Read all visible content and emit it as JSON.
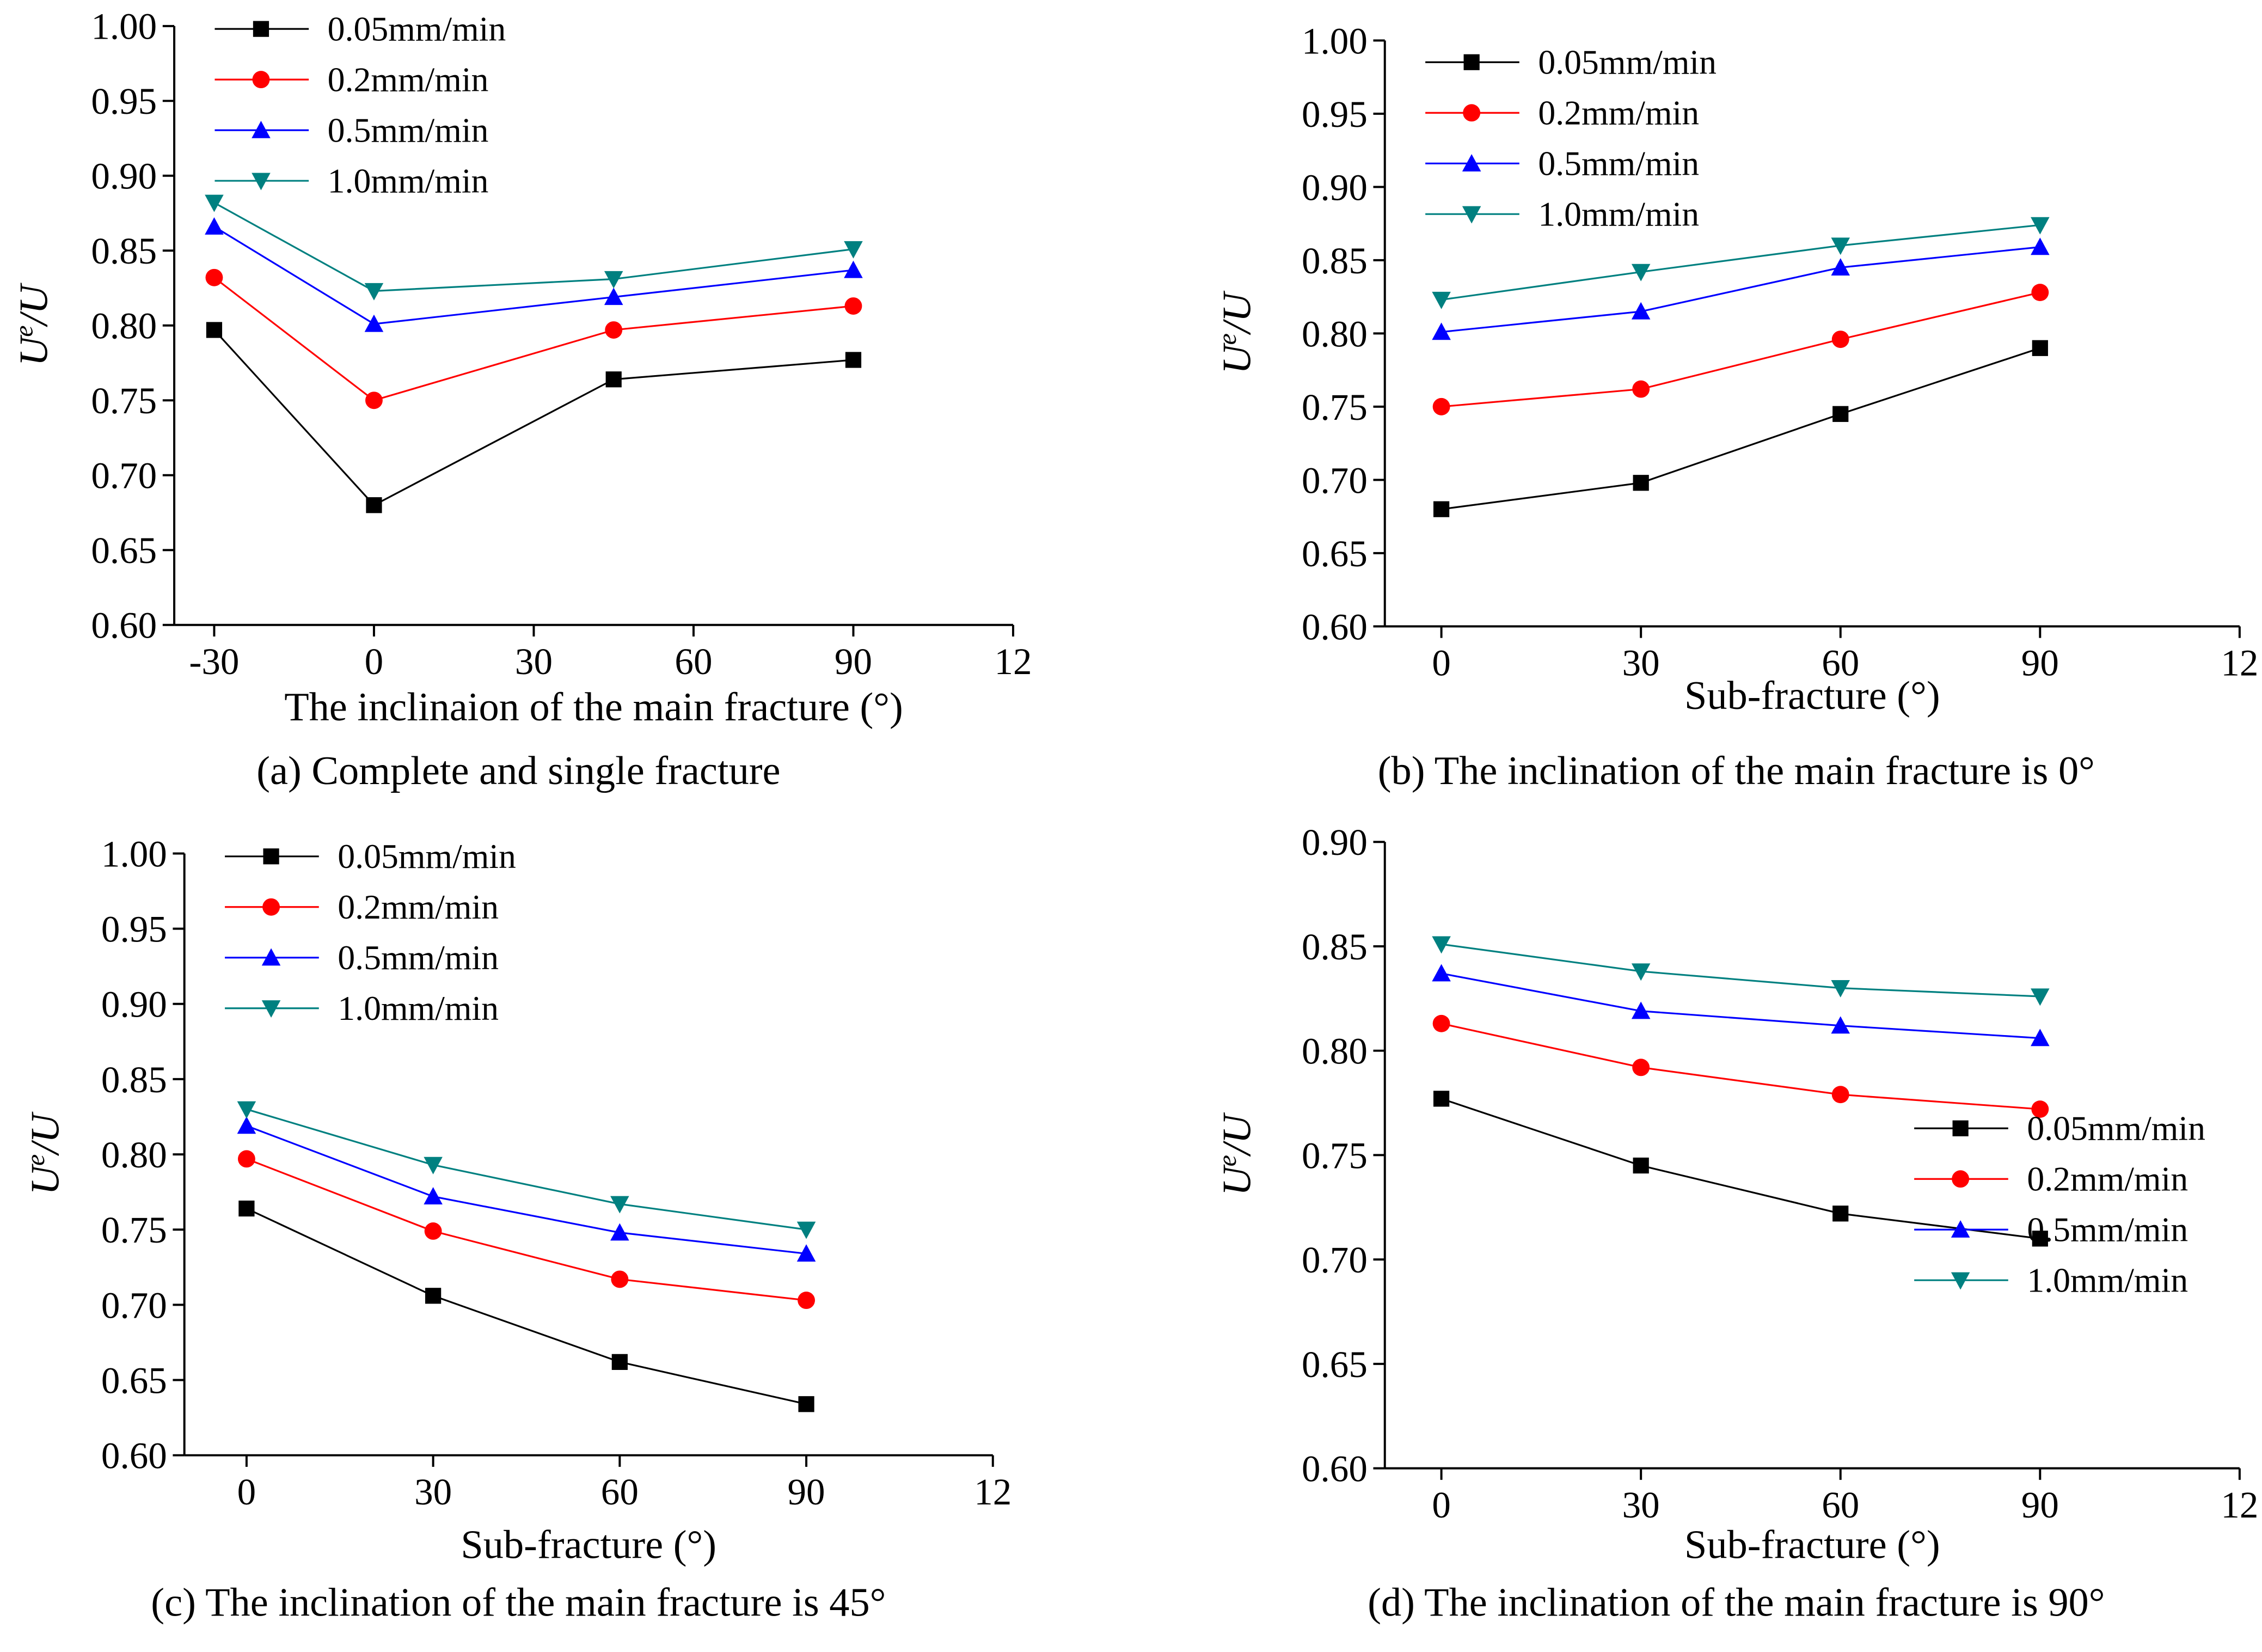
{
  "chart_data": [
    {
      "type": "line",
      "caption": "(a) Complete and single fracture",
      "xlabel": "The inclinaion of the main fracture (°)",
      "ylabel": "U",
      "ylabel_sup": "e",
      "ylabel_tail": "/U",
      "x": [
        -30,
        0,
        45,
        90
      ],
      "xlim": [
        -37.5,
        120
      ],
      "xticks": [
        -30,
        0,
        30,
        60,
        90,
        {
          "value": 120,
          "label": "12"
        }
      ],
      "ylim": [
        0.6,
        1.0
      ],
      "yticks": [
        {
          "value": 0.6,
          "label": "0.60"
        },
        0.65,
        {
          "value": 0.7,
          "label": "0.70"
        },
        0.75,
        {
          "value": 0.8,
          "label": "0.80"
        },
        0.85,
        {
          "value": 0.9,
          "label": "0.90"
        },
        0.95,
        {
          "value": 1.0,
          "label": "1.00"
        }
      ],
      "legend": "upper left",
      "series": [
        {
          "name": "0.05mm/min",
          "color": "#000000",
          "marker": "square",
          "values": [
            0.797,
            0.68,
            0.764,
            0.777
          ]
        },
        {
          "name": "0.2mm/min",
          "color": "#ff0000",
          "marker": "circle",
          "values": [
            0.832,
            0.75,
            0.797,
            0.813
          ]
        },
        {
          "name": "0.5mm/min",
          "color": "#0000ff",
          "marker": "triangle-up",
          "values": [
            0.866,
            0.801,
            0.819,
            0.837
          ]
        },
        {
          "name": "1.0mm/min",
          "color": "#008080",
          "marker": "triangle-down",
          "values": [
            0.882,
            0.823,
            0.831,
            0.851
          ]
        }
      ]
    },
    {
      "type": "line",
      "caption": "(b) The inclination of the main fracture is 0°",
      "xlabel": "Sub-fracture (°)",
      "ylabel": "U",
      "ylabel_sup": "e",
      "ylabel_tail": "/U",
      "x": [
        0,
        30,
        60,
        90
      ],
      "xlim": [
        -8.5,
        120
      ],
      "xticks": [
        0,
        30,
        60,
        90,
        {
          "value": 120,
          "label": "12"
        }
      ],
      "ylim": [
        0.6,
        1.0
      ],
      "yticks": [
        {
          "value": 0.6,
          "label": "0.60"
        },
        0.65,
        {
          "value": 0.7,
          "label": "0.70"
        },
        0.75,
        {
          "value": 0.8,
          "label": "0.80"
        },
        0.85,
        {
          "value": 0.9,
          "label": "0.90"
        },
        0.95,
        {
          "value": 1.0,
          "label": "1.00"
        }
      ],
      "legend": "upper left",
      "series": [
        {
          "name": "0.05mm/min",
          "color": "#000000",
          "marker": "square",
          "values": [
            0.68,
            0.698,
            0.745,
            0.79
          ]
        },
        {
          "name": "0.2mm/min",
          "color": "#ff0000",
          "marker": "circle",
          "values": [
            0.75,
            0.762,
            0.796,
            0.828
          ]
        },
        {
          "name": "0.5mm/min",
          "color": "#0000ff",
          "marker": "triangle-up",
          "values": [
            0.801,
            0.815,
            0.845,
            0.859
          ]
        },
        {
          "name": "1.0mm/min",
          "color": "#008080",
          "marker": "triangle-down",
          "values": [
            0.823,
            0.842,
            0.86,
            0.874
          ]
        }
      ]
    },
    {
      "type": "line",
      "caption": "(c) The inclination of the main fracture is 45°",
      "xlabel": "Sub-fracture (°)",
      "ylabel": "U",
      "ylabel_sup": "e",
      "ylabel_tail": "/U",
      "x": [
        0,
        30,
        60,
        90
      ],
      "xlim": [
        -10,
        120
      ],
      "xticks": [
        0,
        30,
        60,
        90,
        {
          "value": 120,
          "label": "12"
        }
      ],
      "ylim": [
        0.6,
        1.0
      ],
      "yticks": [
        {
          "value": 0.6,
          "label": "0.60"
        },
        0.65,
        {
          "value": 0.7,
          "label": "0.70"
        },
        0.75,
        {
          "value": 0.8,
          "label": "0.80"
        },
        0.85,
        {
          "value": 0.9,
          "label": "0.90"
        },
        0.95,
        {
          "value": 1.0,
          "label": "1.00"
        }
      ],
      "legend": "upper left",
      "series": [
        {
          "name": "0.05mm/min",
          "color": "#000000",
          "marker": "square",
          "values": [
            0.764,
            0.706,
            0.662,
            0.634
          ]
        },
        {
          "name": "0.2mm/min",
          "color": "#ff0000",
          "marker": "circle",
          "values": [
            0.797,
            0.749,
            0.717,
            0.703
          ]
        },
        {
          "name": "0.5mm/min",
          "color": "#0000ff",
          "marker": "triangle-up",
          "values": [
            0.819,
            0.772,
            0.748,
            0.734
          ]
        },
        {
          "name": "1.0mm/min",
          "color": "#008080",
          "marker": "triangle-down",
          "values": [
            0.83,
            0.793,
            0.767,
            0.75
          ]
        }
      ]
    },
    {
      "type": "line",
      "caption": "(d) The inclination of the main fracture is 90°",
      "xlabel": "Sub-fracture (°)",
      "ylabel": "U",
      "ylabel_sup": "e",
      "ylabel_tail": "/U",
      "x": [
        0,
        30,
        60,
        90
      ],
      "xlim": [
        -8.5,
        120
      ],
      "xticks": [
        0,
        30,
        60,
        90,
        {
          "value": 120,
          "label": "12"
        }
      ],
      "ylim": [
        0.6,
        0.9
      ],
      "yticks": [
        {
          "value": 0.6,
          "label": "0.60"
        },
        0.65,
        {
          "value": 0.7,
          "label": "0.70"
        },
        0.75,
        {
          "value": 0.8,
          "label": "0.80"
        },
        0.85,
        {
          "value": 0.9,
          "label": "0.90"
        }
      ],
      "legend": "lower right",
      "series": [
        {
          "name": "0.05mm/min",
          "color": "#000000",
          "marker": "square",
          "values": [
            0.777,
            0.745,
            0.722,
            0.71
          ]
        },
        {
          "name": "0.2mm/min",
          "color": "#ff0000",
          "marker": "circle",
          "values": [
            0.813,
            0.792,
            0.779,
            0.772
          ]
        },
        {
          "name": "0.5mm/min",
          "color": "#0000ff",
          "marker": "triangle-up",
          "values": [
            0.837,
            0.819,
            0.812,
            0.806
          ]
        },
        {
          "name": "1.0mm/min",
          "color": "#008080",
          "marker": "triangle-down",
          "values": [
            0.851,
            0.838,
            0.83,
            0.826
          ]
        }
      ]
    }
  ]
}
